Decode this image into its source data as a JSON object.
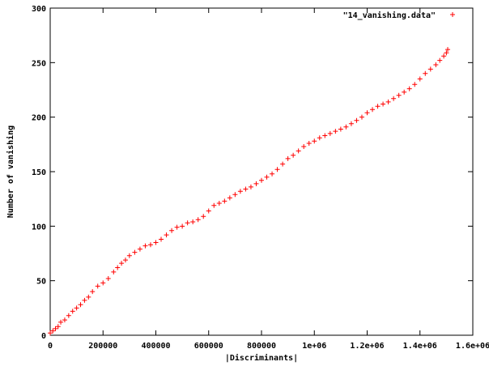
{
  "chart_data": {
    "type": "scatter",
    "title": "",
    "xlabel": "|Discriminants|",
    "ylabel": "Number of vanishing",
    "xlim": [
      0,
      1600000
    ],
    "ylim": [
      0,
      300
    ],
    "x_ticks": [
      {
        "value": 0,
        "label": "0"
      },
      {
        "value": 200000,
        "label": "200000"
      },
      {
        "value": 400000,
        "label": "400000"
      },
      {
        "value": 600000,
        "label": "600000"
      },
      {
        "value": 800000,
        "label": "800000"
      },
      {
        "value": 1000000,
        "label": "1e+06"
      },
      {
        "value": 1200000,
        "label": "1.2e+06"
      },
      {
        "value": 1400000,
        "label": "1.4e+06"
      },
      {
        "value": 1600000,
        "label": "1.6e+06"
      }
    ],
    "y_ticks": [
      {
        "value": 0,
        "label": "0"
      },
      {
        "value": 50,
        "label": "50"
      },
      {
        "value": 100,
        "label": "100"
      },
      {
        "value": 150,
        "label": "150"
      },
      {
        "value": 200,
        "label": "200"
      },
      {
        "value": 250,
        "label": "250"
      },
      {
        "value": 300,
        "label": "300"
      }
    ],
    "grid": false,
    "legend_position": "top-right",
    "series": [
      {
        "name": "\"14_vanishing.data\"",
        "color": "#ff0000",
        "marker": "plus",
        "points": [
          [
            0,
            2
          ],
          [
            10000,
            4
          ],
          [
            20000,
            6
          ],
          [
            30000,
            8
          ],
          [
            40000,
            12
          ],
          [
            55000,
            14
          ],
          [
            70000,
            18
          ],
          [
            85000,
            22
          ],
          [
            100000,
            25
          ],
          [
            115000,
            28
          ],
          [
            130000,
            32
          ],
          [
            145000,
            35
          ],
          [
            160000,
            40
          ],
          [
            180000,
            45
          ],
          [
            200000,
            48
          ],
          [
            220000,
            52
          ],
          [
            240000,
            58
          ],
          [
            255000,
            62
          ],
          [
            270000,
            66
          ],
          [
            285000,
            69
          ],
          [
            300000,
            73
          ],
          [
            320000,
            76
          ],
          [
            340000,
            79
          ],
          [
            360000,
            82
          ],
          [
            380000,
            83
          ],
          [
            400000,
            85
          ],
          [
            420000,
            88
          ],
          [
            440000,
            92
          ],
          [
            460000,
            96
          ],
          [
            480000,
            99
          ],
          [
            500000,
            100
          ],
          [
            520000,
            103
          ],
          [
            540000,
            104
          ],
          [
            560000,
            106
          ],
          [
            580000,
            109
          ],
          [
            600000,
            114
          ],
          [
            620000,
            119
          ],
          [
            640000,
            121
          ],
          [
            660000,
            123
          ],
          [
            680000,
            126
          ],
          [
            700000,
            129
          ],
          [
            720000,
            132
          ],
          [
            740000,
            134
          ],
          [
            760000,
            136
          ],
          [
            780000,
            139
          ],
          [
            800000,
            142
          ],
          [
            820000,
            145
          ],
          [
            840000,
            148
          ],
          [
            860000,
            152
          ],
          [
            880000,
            157
          ],
          [
            900000,
            162
          ],
          [
            920000,
            165
          ],
          [
            940000,
            169
          ],
          [
            960000,
            173
          ],
          [
            980000,
            176
          ],
          [
            1000000,
            178
          ],
          [
            1020000,
            181
          ],
          [
            1040000,
            183
          ],
          [
            1060000,
            185
          ],
          [
            1080000,
            187
          ],
          [
            1100000,
            189
          ],
          [
            1120000,
            191
          ],
          [
            1140000,
            194
          ],
          [
            1160000,
            197
          ],
          [
            1180000,
            200
          ],
          [
            1200000,
            204
          ],
          [
            1220000,
            207
          ],
          [
            1240000,
            210
          ],
          [
            1260000,
            212
          ],
          [
            1280000,
            214
          ],
          [
            1300000,
            217
          ],
          [
            1320000,
            220
          ],
          [
            1340000,
            223
          ],
          [
            1360000,
            226
          ],
          [
            1380000,
            230
          ],
          [
            1400000,
            235
          ],
          [
            1420000,
            240
          ],
          [
            1440000,
            244
          ],
          [
            1460000,
            248
          ],
          [
            1475000,
            252
          ],
          [
            1490000,
            256
          ],
          [
            1500000,
            259
          ],
          [
            1505000,
            262
          ]
        ]
      }
    ]
  }
}
